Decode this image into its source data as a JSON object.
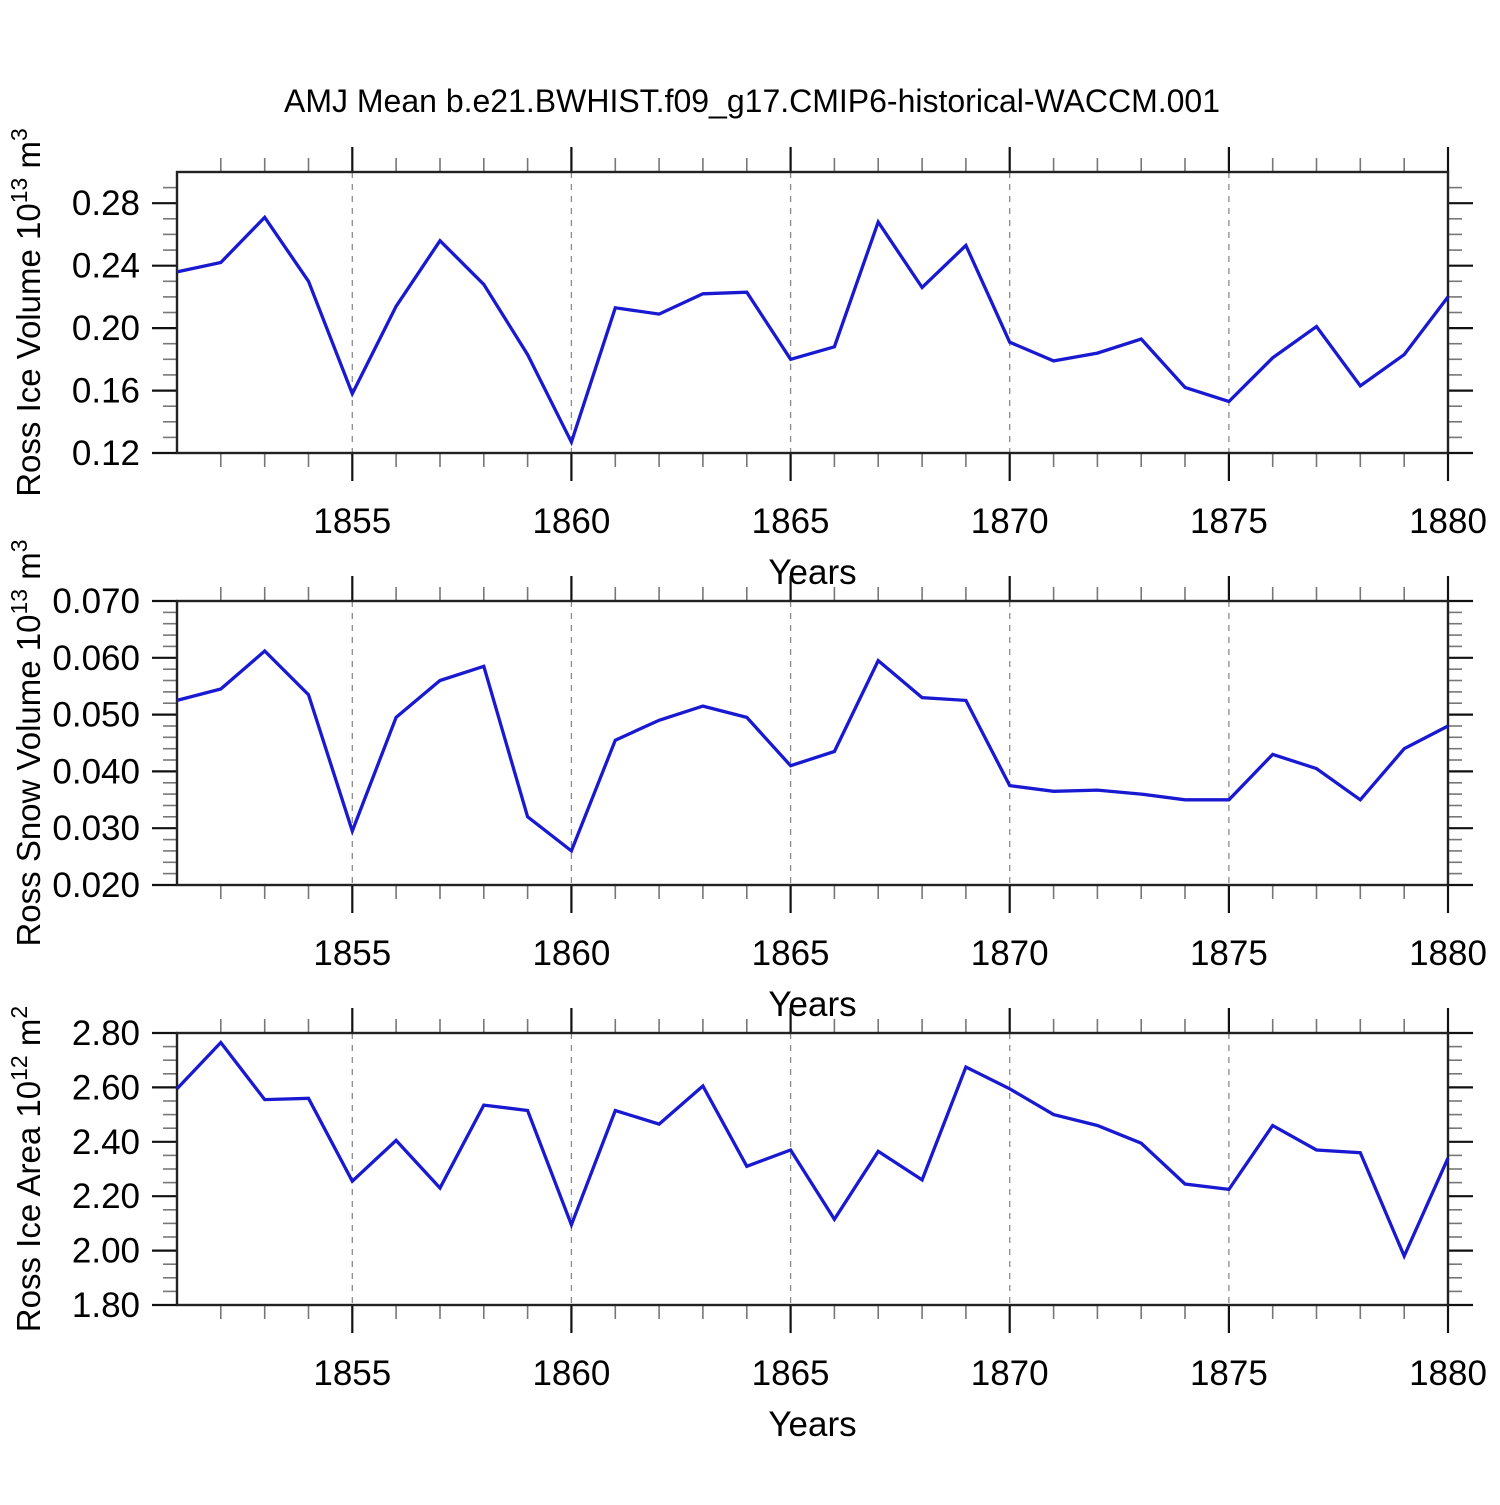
{
  "page": {
    "title": "AMJ Mean b.e21.BWHIST.f09_g17.CMIP6-historical-WACCM.001",
    "background": "#ffffff"
  },
  "style": {
    "line_color": "#1919d2",
    "grid_color": "#8a8a8a",
    "frame_color": "#222222",
    "major_tick_color": "#111111",
    "minor_tick_color": "#777777",
    "text_color": "#000000",
    "grid_style": "dashed"
  },
  "years": [
    1851,
    1852,
    1853,
    1854,
    1855,
    1856,
    1857,
    1858,
    1859,
    1860,
    1861,
    1862,
    1863,
    1864,
    1865,
    1866,
    1867,
    1868,
    1869,
    1870,
    1871,
    1872,
    1873,
    1874,
    1875,
    1876,
    1877,
    1878,
    1879,
    1880
  ],
  "chart_data": [
    {
      "type": "line",
      "name": "ross-ice-volume",
      "ylabel": {
        "base": "Ross Ice Volume 10",
        "exp": "13",
        "unit": " m",
        "unit_exp": "3"
      },
      "xlabel": "Years",
      "xlim": [
        1851,
        1880
      ],
      "ylim": [
        0.12,
        0.3
      ],
      "yticks": [
        0.12,
        0.16,
        0.2,
        0.24,
        0.28
      ],
      "ytick_labels": [
        "0.12",
        "0.16",
        "0.20",
        "0.24",
        "0.28"
      ],
      "y_minor_step": 0.01,
      "xticks": [
        1855,
        1860,
        1865,
        1870,
        1875,
        1880
      ],
      "xtick_labels": [
        "1855",
        "1860",
        "1865",
        "1870",
        "1875",
        "1880"
      ],
      "x_minor_step": 1,
      "gridlines_at": [
        1855,
        1860,
        1865,
        1870,
        1875
      ],
      "grid": "vertical-dashed",
      "legend": "none",
      "values": [
        0.236,
        0.242,
        0.271,
        0.23,
        0.158,
        0.214,
        0.256,
        0.228,
        0.183,
        0.127,
        0.213,
        0.209,
        0.222,
        0.223,
        0.18,
        0.188,
        0.268,
        0.226,
        0.253,
        0.191,
        0.179,
        0.184,
        0.193,
        0.162,
        0.153,
        0.181,
        0.201,
        0.163,
        0.183,
        0.22
      ]
    },
    {
      "type": "line",
      "name": "ross-snow-volume",
      "ylabel": {
        "base": "Ross Snow Volume 10",
        "exp": "13",
        "unit": " m",
        "unit_exp": "3"
      },
      "xlabel": "Years",
      "xlim": [
        1851,
        1880
      ],
      "ylim": [
        0.02,
        0.07
      ],
      "yticks": [
        0.02,
        0.03,
        0.04,
        0.05,
        0.06,
        0.07
      ],
      "ytick_labels": [
        "0.020",
        "0.030",
        "0.040",
        "0.050",
        "0.060",
        "0.070"
      ],
      "y_minor_step": 0.002,
      "xticks": [
        1855,
        1860,
        1865,
        1870,
        1875,
        1880
      ],
      "xtick_labels": [
        "1855",
        "1860",
        "1865",
        "1870",
        "1875",
        "1880"
      ],
      "x_minor_step": 1,
      "gridlines_at": [
        1855,
        1860,
        1865,
        1870,
        1875
      ],
      "grid": "vertical-dashed",
      "legend": "none",
      "values": [
        0.0525,
        0.0545,
        0.0612,
        0.0535,
        0.0295,
        0.0495,
        0.056,
        0.0585,
        0.032,
        0.026,
        0.0455,
        0.049,
        0.0515,
        0.0495,
        0.041,
        0.0435,
        0.0595,
        0.053,
        0.0525,
        0.0375,
        0.0365,
        0.0367,
        0.036,
        0.035,
        0.035,
        0.043,
        0.0405,
        0.035,
        0.044,
        0.048
      ]
    },
    {
      "type": "line",
      "name": "ross-ice-area",
      "ylabel": {
        "base": "Ross Ice Area 10",
        "exp": "12",
        "unit": " m",
        "unit_exp": "2"
      },
      "xlabel": "Years",
      "xlim": [
        1851,
        1880
      ],
      "ylim": [
        1.8,
        2.8
      ],
      "yticks": [
        1.8,
        2.0,
        2.2,
        2.4,
        2.6,
        2.8
      ],
      "ytick_labels": [
        "1.80",
        "2.00",
        "2.20",
        "2.40",
        "2.60",
        "2.80"
      ],
      "y_minor_step": 0.05,
      "xticks": [
        1855,
        1860,
        1865,
        1870,
        1875,
        1880
      ],
      "xtick_labels": [
        "1855",
        "1860",
        "1865",
        "1870",
        "1875",
        "1880"
      ],
      "x_minor_step": 1,
      "gridlines_at": [
        1855,
        1860,
        1865,
        1870,
        1875
      ],
      "grid": "vertical-dashed",
      "legend": "none",
      "values": [
        2.595,
        2.765,
        2.555,
        2.56,
        2.255,
        2.405,
        2.23,
        2.535,
        2.515,
        2.095,
        2.515,
        2.465,
        2.605,
        2.31,
        2.37,
        2.115,
        2.365,
        2.26,
        2.675,
        2.595,
        2.5,
        2.46,
        2.395,
        2.245,
        2.225,
        2.46,
        2.37,
        2.36,
        1.98,
        2.34
      ]
    }
  ]
}
